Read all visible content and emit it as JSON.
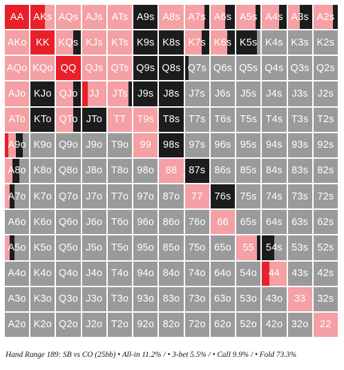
{
  "caption": "Hand Range 189: SB vs CO (25bb) • All-in 11.2% / • 3-bet 5.5% / • Call 9.9% / • Fold 73.3%",
  "colors": {
    "allin": "#e8202a",
    "threebet": "#f4a0a4",
    "call": "#1c1c1c",
    "fold": "#9a9a9a"
  },
  "chart_data": {
    "type": "heatmap",
    "title": "Hand Range 189: SB vs CO (25bb)",
    "summary": {
      "allin_pct": 11.2,
      "threebet_pct": 5.5,
      "call_pct": 9.9,
      "fold_pct": 73.3
    },
    "action_order": [
      "allin",
      "threebet",
      "call",
      "fold"
    ],
    "ranks": [
      "A",
      "K",
      "Q",
      "J",
      "T",
      "9",
      "8",
      "7",
      "6",
      "5",
      "4",
      "3",
      "2"
    ],
    "rows": [
      [
        "AA",
        "AKs",
        "AQs",
        "AJs",
        "ATs",
        "A9s",
        "A8s",
        "A7s",
        "A6s",
        "A5s",
        "A4s",
        "A3s",
        "A2s"
      ],
      [
        "AKo",
        "KK",
        "KQs",
        "KJs",
        "KTs",
        "K9s",
        "K8s",
        "K7s",
        "K6s",
        "K5s",
        "K4s",
        "K3s",
        "K2s"
      ],
      [
        "AQo",
        "KQo",
        "QQ",
        "QJs",
        "QTs",
        "Q9s",
        "Q8s",
        "Q7s",
        "Q6s",
        "Q5s",
        "Q4s",
        "Q3s",
        "Q2s"
      ],
      [
        "AJo",
        "KJo",
        "QJo",
        "JJ",
        "JTs",
        "J9s",
        "J8s",
        "J7s",
        "J6s",
        "J5s",
        "J4s",
        "J3s",
        "J2s"
      ],
      [
        "ATo",
        "KTo",
        "QTo",
        "JTo",
        "TT",
        "T9s",
        "T8s",
        "T7s",
        "T6s",
        "T5s",
        "T4s",
        "T3s",
        "T2s"
      ],
      [
        "A9o",
        "K9o",
        "Q9o",
        "J9o",
        "T9o",
        "99",
        "98s",
        "97s",
        "96s",
        "95s",
        "94s",
        "93s",
        "92s"
      ],
      [
        "A8o",
        "K8o",
        "Q8o",
        "J8o",
        "T8o",
        "98o",
        "88",
        "87s",
        "86s",
        "85s",
        "84s",
        "83s",
        "82s"
      ],
      [
        "A7o",
        "K7o",
        "Q7o",
        "J7o",
        "T7o",
        "97o",
        "87o",
        "77",
        "76s",
        "75s",
        "74s",
        "73s",
        "72s"
      ],
      [
        "A6o",
        "K6o",
        "Q6o",
        "J6o",
        "T6o",
        "96o",
        "86o",
        "76o",
        "66",
        "65s",
        "64s",
        "63s",
        "62s"
      ],
      [
        "A5o",
        "K5o",
        "Q5o",
        "J5o",
        "T5o",
        "95o",
        "85o",
        "75o",
        "65o",
        "55",
        "54s",
        "53s",
        "52s"
      ],
      [
        "A4o",
        "K4o",
        "Q4o",
        "J4o",
        "T4o",
        "94o",
        "84o",
        "74o",
        "64o",
        "54o",
        "44",
        "43s",
        "42s"
      ],
      [
        "A3o",
        "K3o",
        "Q3o",
        "J3o",
        "T3o",
        "93o",
        "83o",
        "73o",
        "63o",
        "53o",
        "43o",
        "33",
        "32s"
      ],
      [
        "A2o",
        "K2o",
        "Q2o",
        "J2o",
        "T2o",
        "92o",
        "82o",
        "72o",
        "62o",
        "52o",
        "42o",
        "32o",
        "22"
      ]
    ],
    "frequencies": [
      [
        [
          1,
          0,
          0,
          0
        ],
        [
          0.6,
          0.4,
          0,
          0
        ],
        [
          0,
          1,
          0,
          0
        ],
        [
          0,
          1,
          0,
          0
        ],
        [
          0,
          1,
          0,
          0
        ],
        [
          0,
          0,
          1,
          0
        ],
        [
          0,
          1,
          0,
          0
        ],
        [
          0,
          0.8,
          0.2,
          0
        ],
        [
          0,
          0.6,
          0.4,
          0
        ],
        [
          0,
          0.8,
          0.2,
          0
        ],
        [
          0,
          0.7,
          0.3,
          0
        ],
        [
          0,
          0.5,
          0.5,
          0
        ],
        [
          0,
          0.8,
          0.2,
          0
        ]
      ],
      [
        [
          0,
          1,
          0,
          0
        ],
        [
          1,
          0,
          0,
          0
        ],
        [
          0,
          0.7,
          0.3,
          0
        ],
        [
          0,
          1,
          0,
          0
        ],
        [
          0,
          1,
          0,
          0
        ],
        [
          0,
          0,
          1,
          0
        ],
        [
          0,
          0,
          1,
          0
        ],
        [
          0,
          0.7,
          0.3,
          0
        ],
        [
          0,
          0.7,
          0.3,
          0
        ],
        [
          0,
          0,
          0.85,
          0.15
        ],
        [
          0,
          0,
          0,
          1
        ],
        [
          0,
          0,
          0,
          1
        ],
        [
          0,
          0,
          0,
          1
        ]
      ],
      [
        [
          0,
          1,
          0,
          0
        ],
        [
          0,
          1,
          0,
          0
        ],
        [
          1,
          0,
          0,
          0
        ],
        [
          0,
          1,
          0,
          0
        ],
        [
          0,
          1,
          0,
          0
        ],
        [
          0,
          0,
          1,
          0
        ],
        [
          0,
          0,
          1,
          0
        ],
        [
          0,
          0,
          0.15,
          0.85
        ],
        [
          0,
          0,
          0,
          1
        ],
        [
          0,
          0,
          0,
          1
        ],
        [
          0,
          0,
          0,
          1
        ],
        [
          0,
          0,
          0,
          1
        ],
        [
          0,
          0,
          0,
          1
        ]
      ],
      [
        [
          0,
          1,
          0,
          0
        ],
        [
          0,
          0,
          1,
          0
        ],
        [
          0,
          0.7,
          0.3,
          0
        ],
        [
          0.25,
          0.75,
          0,
          0
        ],
        [
          0,
          0.85,
          0.15,
          0
        ],
        [
          0,
          0,
          1,
          0
        ],
        [
          0,
          0,
          1,
          0
        ],
        [
          0,
          0,
          0,
          1
        ],
        [
          0,
          0,
          0,
          1
        ],
        [
          0,
          0,
          0,
          1
        ],
        [
          0,
          0,
          0,
          1
        ],
        [
          0,
          0,
          0,
          1
        ],
        [
          0,
          0,
          0,
          1
        ]
      ],
      [
        [
          0,
          1,
          0,
          0
        ],
        [
          0,
          0,
          1,
          0
        ],
        [
          0,
          0.7,
          0.3,
          0
        ],
        [
          0,
          0,
          1,
          0
        ],
        [
          0,
          1,
          0,
          0
        ],
        [
          0,
          1,
          0,
          0
        ],
        [
          0,
          0,
          1,
          0
        ],
        [
          0,
          0,
          0,
          1
        ],
        [
          0,
          0,
          0,
          1
        ],
        [
          0,
          0,
          0,
          1
        ],
        [
          0,
          0,
          0,
          1
        ],
        [
          0,
          0,
          0,
          1
        ],
        [
          0,
          0,
          0,
          1
        ]
      ],
      [
        [
          0.15,
          0.3,
          0.3,
          0.25
        ],
        [
          0,
          0,
          0,
          1
        ],
        [
          0,
          0,
          0,
          1
        ],
        [
          0,
          0,
          0,
          1
        ],
        [
          0,
          0,
          0,
          1
        ],
        [
          0,
          1,
          0,
          0
        ],
        [
          0,
          0,
          1,
          0
        ],
        [
          0,
          0,
          0,
          1
        ],
        [
          0,
          0,
          0,
          1
        ],
        [
          0,
          0,
          0,
          1
        ],
        [
          0,
          0,
          0,
          1
        ],
        [
          0,
          0,
          0,
          1
        ],
        [
          0,
          0,
          0,
          1
        ]
      ],
      [
        [
          0,
          0.3,
          0.3,
          0.4
        ],
        [
          0,
          0,
          0,
          1
        ],
        [
          0,
          0,
          0,
          1
        ],
        [
          0,
          0,
          0,
          1
        ],
        [
          0,
          0,
          0,
          1
        ],
        [
          0,
          0,
          0,
          1
        ],
        [
          0,
          1,
          0,
          0
        ],
        [
          0,
          0,
          1,
          0
        ],
        [
          0,
          0,
          0,
          1
        ],
        [
          0,
          0,
          0,
          1
        ],
        [
          0,
          0,
          0,
          1
        ],
        [
          0,
          0,
          0,
          1
        ],
        [
          0,
          0,
          0,
          1
        ]
      ],
      [
        [
          0,
          0.2,
          0.2,
          0.6
        ],
        [
          0,
          0,
          0,
          1
        ],
        [
          0,
          0,
          0,
          1
        ],
        [
          0,
          0,
          0,
          1
        ],
        [
          0,
          0,
          0,
          1
        ],
        [
          0,
          0,
          0,
          1
        ],
        [
          0,
          0,
          0,
          1
        ],
        [
          0,
          1,
          0,
          0
        ],
        [
          0,
          0,
          1,
          0
        ],
        [
          0,
          0,
          0,
          1
        ],
        [
          0,
          0,
          0,
          1
        ],
        [
          0,
          0,
          0,
          1
        ],
        [
          0,
          0,
          0,
          1
        ]
      ],
      [
        [
          0,
          0,
          0,
          1
        ],
        [
          0,
          0,
          0,
          1
        ],
        [
          0,
          0,
          0,
          1
        ],
        [
          0,
          0,
          0,
          1
        ],
        [
          0,
          0,
          0,
          1
        ],
        [
          0,
          0,
          0,
          1
        ],
        [
          0,
          0,
          0,
          1
        ],
        [
          0,
          0,
          0,
          1
        ],
        [
          0,
          1,
          0,
          0
        ],
        [
          0,
          0,
          0,
          1
        ],
        [
          0,
          0,
          0,
          1
        ],
        [
          0,
          0,
          0,
          1
        ],
        [
          0,
          0,
          0,
          1
        ]
      ],
      [
        [
          0,
          0.2,
          0.2,
          0.6
        ],
        [
          0,
          0,
          0,
          1
        ],
        [
          0,
          0,
          0,
          1
        ],
        [
          0,
          0,
          0,
          1
        ],
        [
          0,
          0,
          0,
          1
        ],
        [
          0,
          0,
          0,
          1
        ],
        [
          0,
          0,
          0,
          1
        ],
        [
          0,
          0,
          0,
          1
        ],
        [
          0,
          0,
          0,
          1
        ],
        [
          0,
          0.85,
          0.15,
          0
        ],
        [
          0,
          0,
          0.5,
          0.5
        ],
        [
          0,
          0,
          0,
          1
        ],
        [
          0,
          0,
          0,
          1
        ]
      ],
      [
        [
          0,
          0,
          0,
          1
        ],
        [
          0,
          0,
          0,
          1
        ],
        [
          0,
          0,
          0,
          1
        ],
        [
          0,
          0,
          0,
          1
        ],
        [
          0,
          0,
          0,
          1
        ],
        [
          0,
          0,
          0,
          1
        ],
        [
          0,
          0,
          0,
          1
        ],
        [
          0,
          0,
          0,
          1
        ],
        [
          0,
          0,
          0,
          1
        ],
        [
          0,
          0,
          0,
          1
        ],
        [
          0.3,
          0.7,
          0,
          0
        ],
        [
          0,
          0,
          0,
          1
        ],
        [
          0,
          0,
          0,
          1
        ]
      ],
      [
        [
          0,
          0,
          0,
          1
        ],
        [
          0,
          0,
          0,
          1
        ],
        [
          0,
          0,
          0,
          1
        ],
        [
          0,
          0,
          0,
          1
        ],
        [
          0,
          0,
          0,
          1
        ],
        [
          0,
          0,
          0,
          1
        ],
        [
          0,
          0,
          0,
          1
        ],
        [
          0,
          0,
          0,
          1
        ],
        [
          0,
          0,
          0,
          1
        ],
        [
          0,
          0,
          0,
          1
        ],
        [
          0,
          0,
          0,
          1
        ],
        [
          0,
          1,
          0,
          0
        ],
        [
          0,
          0,
          0,
          1
        ]
      ],
      [
        [
          0,
          0,
          0,
          1
        ],
        [
          0,
          0,
          0,
          1
        ],
        [
          0,
          0,
          0,
          1
        ],
        [
          0,
          0,
          0,
          1
        ],
        [
          0,
          0,
          0,
          1
        ],
        [
          0,
          0,
          0,
          1
        ],
        [
          0,
          0,
          0,
          1
        ],
        [
          0,
          0,
          0,
          1
        ],
        [
          0,
          0,
          0,
          1
        ],
        [
          0,
          0,
          0,
          1
        ],
        [
          0,
          0,
          0,
          1
        ],
        [
          0,
          0,
          0,
          1
        ],
        [
          0,
          1,
          0,
          0
        ]
      ]
    ]
  }
}
